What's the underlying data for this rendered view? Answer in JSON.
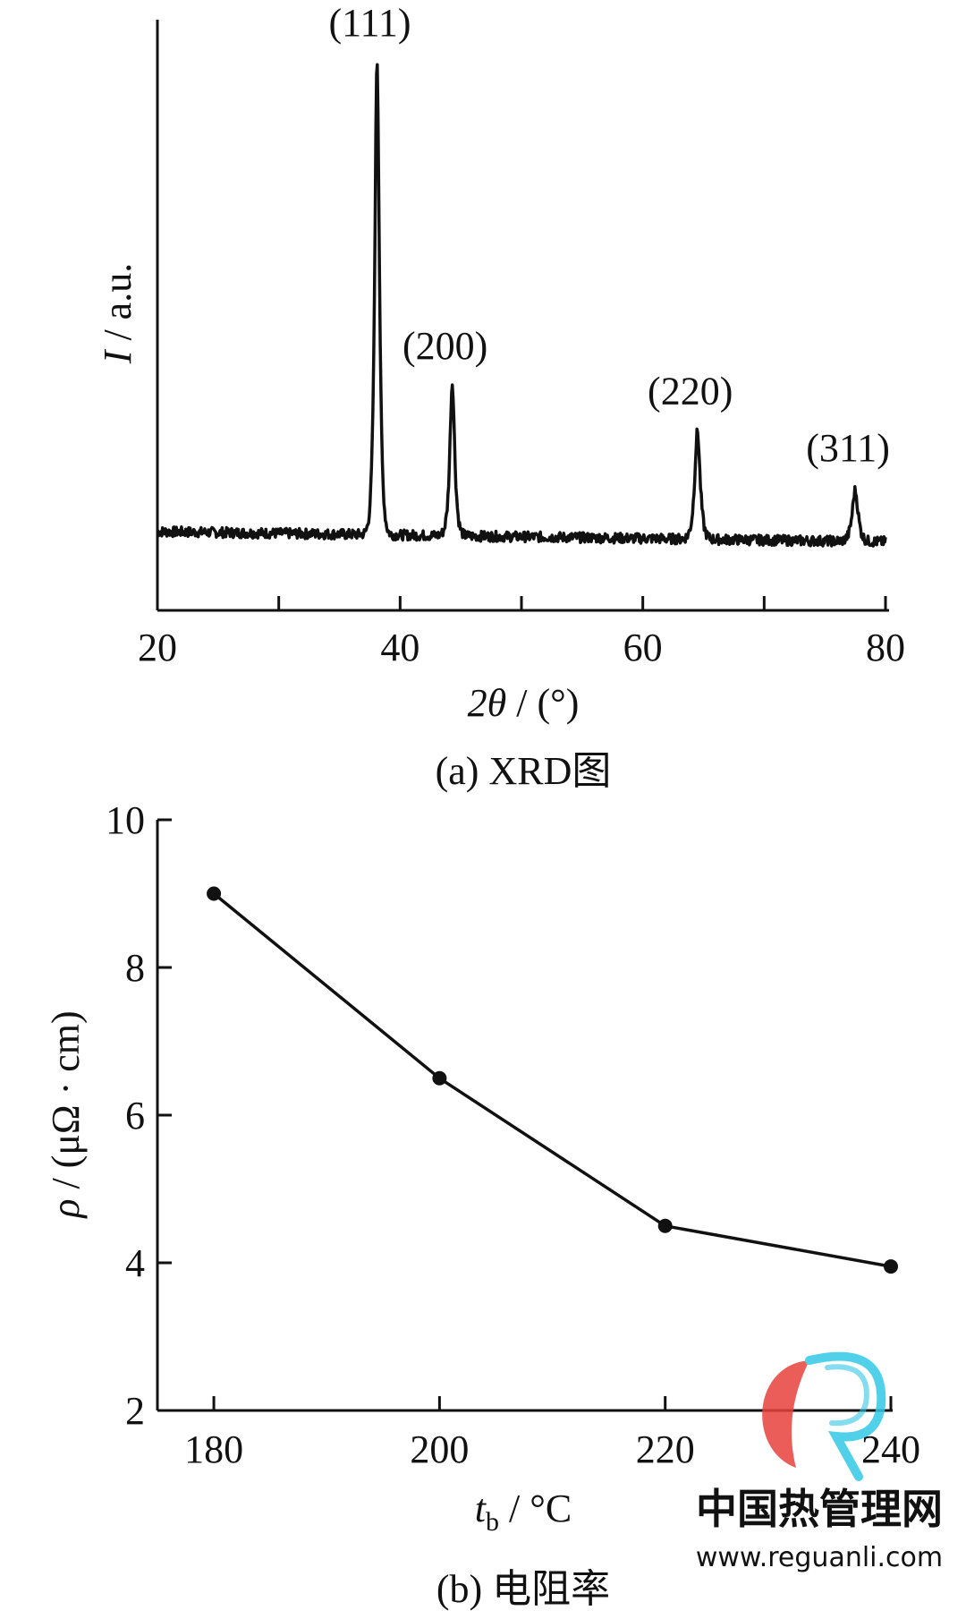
{
  "chart_data": [
    {
      "type": "line",
      "panel": "a",
      "caption": "(a) XRD图",
      "xlabel_var": "2θ",
      "xlabel_unit": " / (°)",
      "ylabel_var": "I",
      "ylabel_unit": " / a.u.",
      "xlim": [
        20,
        80
      ],
      "xticks": [
        20,
        30,
        40,
        50,
        60,
        70,
        80
      ],
      "xticklabels": [
        "20",
        "40",
        "60",
        "80"
      ],
      "yticks": [],
      "baseline": 0.16,
      "peaks": [
        {
          "label": "(111)",
          "x": 38.1,
          "intensity": 1.0
        },
        {
          "label": "(200)",
          "x": 44.3,
          "intensity": 0.43
        },
        {
          "label": "(220)",
          "x": 64.5,
          "intensity": 0.35
        },
        {
          "label": "(311)",
          "x": 77.5,
          "intensity": 0.25
        }
      ],
      "grid": false,
      "legend": "none"
    },
    {
      "type": "line",
      "panel": "b",
      "caption": "(b) 电阻率",
      "xlabel_var": "t",
      "xlabel_sub": "b",
      "xlabel_unit": " / °C",
      "ylabel_var": "ρ",
      "ylabel_unit": " / (μΩ · cm)",
      "x": [
        180,
        200,
        220,
        240
      ],
      "y": [
        9.0,
        6.5,
        4.5,
        3.95
      ],
      "xlim": [
        175,
        240
      ],
      "ylim": [
        2,
        10
      ],
      "xticks": [
        180,
        200,
        220,
        240
      ],
      "xticklabels": [
        "180",
        "200",
        "220",
        "240"
      ],
      "yticks": [
        2,
        4,
        6,
        8,
        10
      ],
      "yticklabels": [
        "2",
        "4",
        "6",
        "8",
        "10"
      ],
      "grid": false,
      "legend": "none"
    }
  ],
  "watermark": {
    "text": "中国热管理网",
    "url": "www.reguanli.com",
    "color_red": "#e8413c",
    "color_cyan": "#32c8e6"
  }
}
